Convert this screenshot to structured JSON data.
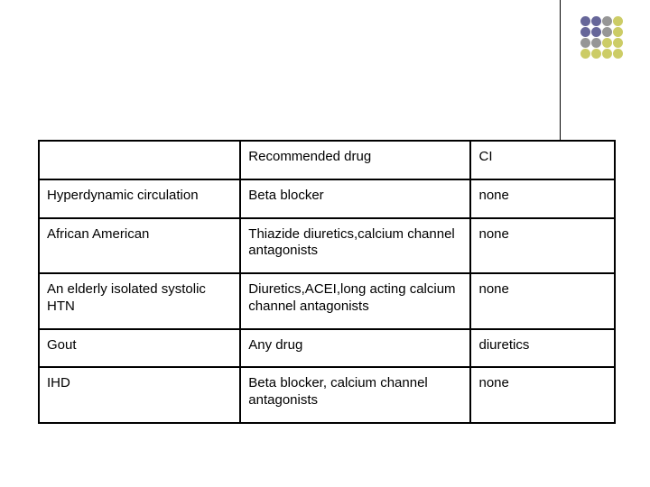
{
  "decoration": {
    "colors": [
      "#666699",
      "#969696",
      "#cccc66"
    ],
    "rows": 4,
    "cols": 4,
    "dot_size": 11,
    "gap": 1
  },
  "table": {
    "type": "table",
    "border_color": "#000000",
    "border_width": 2,
    "background_color": "#ffffff",
    "text_color": "#000000",
    "font_size": 15,
    "column_widths": [
      "35%",
      "40%",
      "25%"
    ],
    "columns": [
      "",
      "Recommended drug",
      "CI"
    ],
    "rows": [
      [
        "Hyperdynamic circulation",
        "Beta blocker",
        "none"
      ],
      [
        "African American",
        "Thiazide diuretics,calcium channel antagonists",
        "none"
      ],
      [
        "An elderly isolated systolic HTN",
        "Diuretics,ACEI,long acting calcium channel antagonists",
        "none"
      ],
      [
        "Gout",
        "Any drug",
        "diuretics"
      ],
      [
        "IHD",
        "Beta blocker, calcium channel antagonists",
        "none"
      ]
    ]
  }
}
